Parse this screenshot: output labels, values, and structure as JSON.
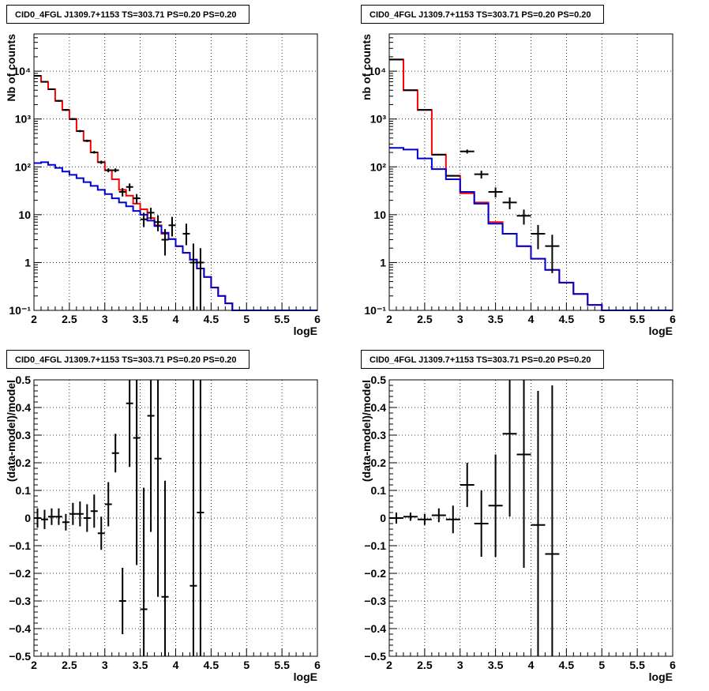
{
  "colors": {
    "data": "#000000",
    "total_model": "#ff0000",
    "component": "#0000cc",
    "grid": "#000000"
  },
  "panels": [
    {
      "title": "CID0_4FGL J1309.7+1153 TS=303.71 PS=0.20 PS=0.20"
    },
    {
      "title": "CID0_4FGL J1309.7+1153 TS=303.71 PS=0.20 PS=0.20"
    },
    {
      "title": "CID0_4FGL J1309.7+1153 TS=303.71 PS=0.20 PS=0.20"
    },
    {
      "title": "CID0_4FGL J1309.7+1153 TS=303.71 PS=0.20 PS=0.20"
    }
  ],
  "chart_data": [
    {
      "type": "line",
      "title": "CID0_4FGL J1309.7+1153 TS=303.71 PS=0.20 PS=0.20",
      "xlabel": "logE",
      "ylabel": "Nb of counts",
      "xlim": [
        2,
        6
      ],
      "ylim": [
        0.1,
        60000
      ],
      "yscale": "log",
      "grid": true,
      "xticks": [
        2,
        2.5,
        3,
        3.5,
        4,
        4.5,
        5,
        5.5,
        6
      ],
      "xtick_labels": [
        "2",
        "2.5",
        "3",
        "3.5",
        "4",
        "4.5",
        "5",
        "5.5",
        "6"
      ],
      "yticks": [
        0.1,
        1,
        10,
        100,
        1000,
        10000
      ],
      "ytick_labels": [
        "10⁻¹",
        "1",
        "10",
        "10²",
        "10³",
        "10⁴"
      ],
      "bin_edges": [
        2.0,
        2.1,
        2.2,
        2.3,
        2.4,
        2.5,
        2.6,
        2.7,
        2.8,
        2.9,
        3.0,
        3.1,
        3.2,
        3.3,
        3.4,
        3.5,
        3.6,
        3.7,
        3.8,
        3.9,
        4.0,
        4.1,
        4.2,
        4.3,
        4.4,
        4.5,
        4.6,
        4.7,
        4.8,
        4.9,
        5.0,
        5.1,
        5.2,
        5.3,
        5.4,
        5.5,
        5.6,
        5.7,
        5.8,
        5.9,
        6.0
      ],
      "series": [
        {
          "style": "step",
          "color": "#ff0000",
          "values": [
            8000,
            6000,
            4200,
            2400,
            1550,
            1000,
            560,
            350,
            200,
            125,
            85,
            55,
            33,
            25,
            17,
            13,
            8.5,
            6,
            4,
            3.1,
            2.2,
            1.6,
            1.15,
            0.75,
            0.5,
            0.3,
            0.2,
            0.14,
            0.1,
            0.1,
            0.1,
            0.1,
            0.1,
            0.1,
            0.1,
            0.1,
            0.1,
            0.1,
            0.1,
            0.1
          ]
        },
        {
          "style": "step",
          "color": "#0000cc",
          "values": [
            120,
            125,
            110,
            95,
            80,
            68,
            58,
            48,
            40,
            33,
            27,
            22,
            18,
            15,
            12,
            10,
            7.5,
            5.8,
            4.2,
            3.1,
            2.2,
            1.6,
            1.15,
            0.75,
            0.5,
            0.3,
            0.2,
            0.14,
            0.1,
            0.1,
            0.1,
            0.1,
            0.1,
            0.1,
            0.1,
            0.1,
            0.1,
            0.1,
            0.1,
            0.1
          ]
        },
        {
          "style": "points",
          "color": "#000000",
          "x": [
            2.05,
            2.15,
            2.25,
            2.35,
            2.45,
            2.55,
            2.65,
            2.75,
            2.85,
            2.95,
            3.05,
            3.15,
            3.25,
            3.35,
            3.45,
            3.55,
            3.65,
            3.75,
            3.85,
            3.95,
            4.15,
            4.25,
            4.35
          ],
          "y": [
            8000,
            6000,
            4200,
            2400,
            1550,
            1000,
            560,
            350,
            200,
            125,
            85,
            85,
            30,
            38,
            22,
            8,
            11,
            7,
            3,
            6,
            4,
            1,
            1
          ],
          "ylo": [
            7800,
            5850,
            4050,
            2300,
            1480,
            950,
            530,
            330,
            190,
            115,
            77,
            77,
            24,
            31,
            17,
            5.5,
            8,
            4.5,
            1.4,
            3.5,
            2.3,
            0.1,
            0.1
          ],
          "yhi": [
            8200,
            6150,
            4350,
            2500,
            1620,
            1050,
            590,
            370,
            215,
            135,
            93,
            93,
            36,
            45,
            27,
            11,
            14,
            9.7,
            5,
            9,
            6.5,
            2.5,
            2
          ]
        }
      ]
    },
    {
      "type": "line",
      "title": "CID0_4FGL J1309.7+1153 TS=303.71 PS=0.20 PS=0.20",
      "xlabel": "logE",
      "ylabel": "nb of counts",
      "xlim": [
        2,
        6
      ],
      "ylim": [
        0.1,
        60000
      ],
      "yscale": "log",
      "grid": true,
      "xticks": [
        2,
        2.5,
        3,
        3.5,
        4,
        4.5,
        5,
        5.5,
        6
      ],
      "xtick_labels": [
        "2",
        "2.5",
        "3",
        "3.5",
        "4",
        "4.5",
        "5",
        "5.5",
        "6"
      ],
      "yticks": [
        0.1,
        1,
        10,
        100,
        1000,
        10000
      ],
      "ytick_labels": [
        "10⁻¹",
        "1",
        "10",
        "10²",
        "10³",
        "10⁴"
      ],
      "bin_edges": [
        2.0,
        2.2,
        2.4,
        2.6,
        2.8,
        3.0,
        3.2,
        3.4,
        3.6,
        3.8,
        4.0,
        4.2,
        4.4,
        4.6,
        4.8,
        5.0,
        5.2,
        5.4,
        5.6,
        5.8,
        6.0
      ],
      "series": [
        {
          "style": "step",
          "color": "#ff0000",
          "values": [
            17500,
            4000,
            1550,
            180,
            65,
            28,
            18,
            7,
            4,
            2.2,
            1.2,
            0.7,
            0.38,
            0.22,
            0.13,
            0.1,
            0.1,
            0.1,
            0.1,
            0.1
          ]
        },
        {
          "style": "step",
          "color": "#0000cc",
          "values": [
            250,
            230,
            150,
            90,
            55,
            30,
            17,
            6.5,
            4,
            2.2,
            1.2,
            0.7,
            0.38,
            0.22,
            0.13,
            0.1,
            0.1,
            0.1,
            0.1,
            0.1
          ]
        },
        {
          "style": "points",
          "color": "#000000",
          "x": [
            2.1,
            2.3,
            2.5,
            2.7,
            2.9,
            3.1,
            3.3,
            3.5,
            3.7,
            3.9,
            4.1,
            4.3
          ],
          "y": [
            17500,
            4000,
            1550,
            180,
            65,
            210,
            70,
            30,
            18,
            9.5,
            4,
            2.2
          ],
          "ylo": [
            17200,
            3900,
            1500,
            175,
            63,
            190,
            57,
            23,
            13,
            6.2,
            1.9,
            0.6
          ],
          "yhi": [
            17800,
            4100,
            1600,
            185,
            67,
            230,
            83,
            37,
            23,
            12.8,
            6.1,
            3.8
          ]
        }
      ]
    },
    {
      "type": "scatter",
      "title": "CID0_4FGL J1309.7+1153 TS=303.71 PS=0.20 PS=0.20",
      "xlabel": "logE",
      "ylabel": "(data-model)/model",
      "xlim": [
        2,
        6
      ],
      "ylim": [
        -0.5,
        0.5
      ],
      "grid": true,
      "xticks": [
        2,
        2.5,
        3,
        3.5,
        4,
        4.5,
        5,
        5.5,
        6
      ],
      "xtick_labels": [
        "2",
        "2.5",
        "3",
        "3.5",
        "4",
        "4.5",
        "5",
        "5.5",
        "6"
      ],
      "yticks": [
        -0.5,
        -0.4,
        -0.3,
        -0.2,
        -0.1,
        0,
        0.1,
        0.2,
        0.3,
        0.4,
        0.5
      ],
      "ytick_labels": [
        "−0.5",
        "−0.4",
        "−0.3",
        "−0.2",
        "−0.1",
        "0",
        "0.1",
        "0.2",
        "0.3",
        "0.4",
        "0.5"
      ],
      "xerr": 0.05,
      "series": [
        {
          "color": "#000000",
          "x": [
            2.05,
            2.15,
            2.25,
            2.35,
            2.45,
            2.55,
            2.65,
            2.75,
            2.85,
            2.95,
            3.05,
            3.15,
            3.25,
            3.35,
            3.45,
            3.55,
            3.65,
            3.75,
            3.85,
            4.25,
            4.35
          ],
          "y": [
            0.0,
            -0.005,
            0.005,
            0.005,
            -0.015,
            0.015,
            0.015,
            0.0,
            0.025,
            -0.055,
            0.05,
            0.235,
            -0.3,
            0.415,
            0.29,
            -0.33,
            0.37,
            0.215,
            -0.285,
            -0.245,
            0.02
          ],
          "yerr": [
            0.035,
            0.035,
            0.03,
            0.03,
            0.03,
            0.04,
            0.045,
            0.05,
            0.06,
            0.06,
            0.08,
            0.07,
            0.12,
            0.23,
            0.46,
            0.44,
            0.42,
            0.5,
            0.42,
            0.8,
            0.8
          ]
        }
      ]
    },
    {
      "type": "scatter",
      "title": "CID0_4FGL J1309.7+1153 TS=303.71 PS=0.20 PS=0.20",
      "xlabel": "logE",
      "ylabel": "(data-model)/model",
      "xlim": [
        2,
        6
      ],
      "ylim": [
        -0.5,
        0.5
      ],
      "grid": true,
      "xticks": [
        2,
        2.5,
        3,
        3.5,
        4,
        4.5,
        5,
        5.5,
        6
      ],
      "xtick_labels": [
        "2",
        "2.5",
        "3",
        "3.5",
        "4",
        "4.5",
        "5",
        "5.5",
        "6"
      ],
      "yticks": [
        -0.5,
        -0.4,
        -0.3,
        -0.2,
        -0.1,
        0,
        0.1,
        0.2,
        0.3,
        0.4,
        0.5
      ],
      "ytick_labels": [
        "−0.5",
        "−0.4",
        "−0.3",
        "−0.2",
        "−0.1",
        "0",
        "0.1",
        "0.2",
        "0.3",
        "0.4",
        "0.5"
      ],
      "xerr": 0.1,
      "series": [
        {
          "color": "#000000",
          "x": [
            2.1,
            2.3,
            2.5,
            2.7,
            2.9,
            3.1,
            3.3,
            3.5,
            3.7,
            3.9,
            4.1,
            4.3
          ],
          "y": [
            0.0,
            0.005,
            -0.005,
            0.01,
            -0.005,
            0.12,
            -0.02,
            0.045,
            0.305,
            0.23,
            -0.025,
            -0.13
          ],
          "yerr": [
            0.02,
            0.015,
            0.02,
            0.025,
            0.05,
            0.08,
            0.12,
            0.185,
            0.3,
            0.41,
            0.485,
            0.61
          ]
        }
      ]
    }
  ]
}
